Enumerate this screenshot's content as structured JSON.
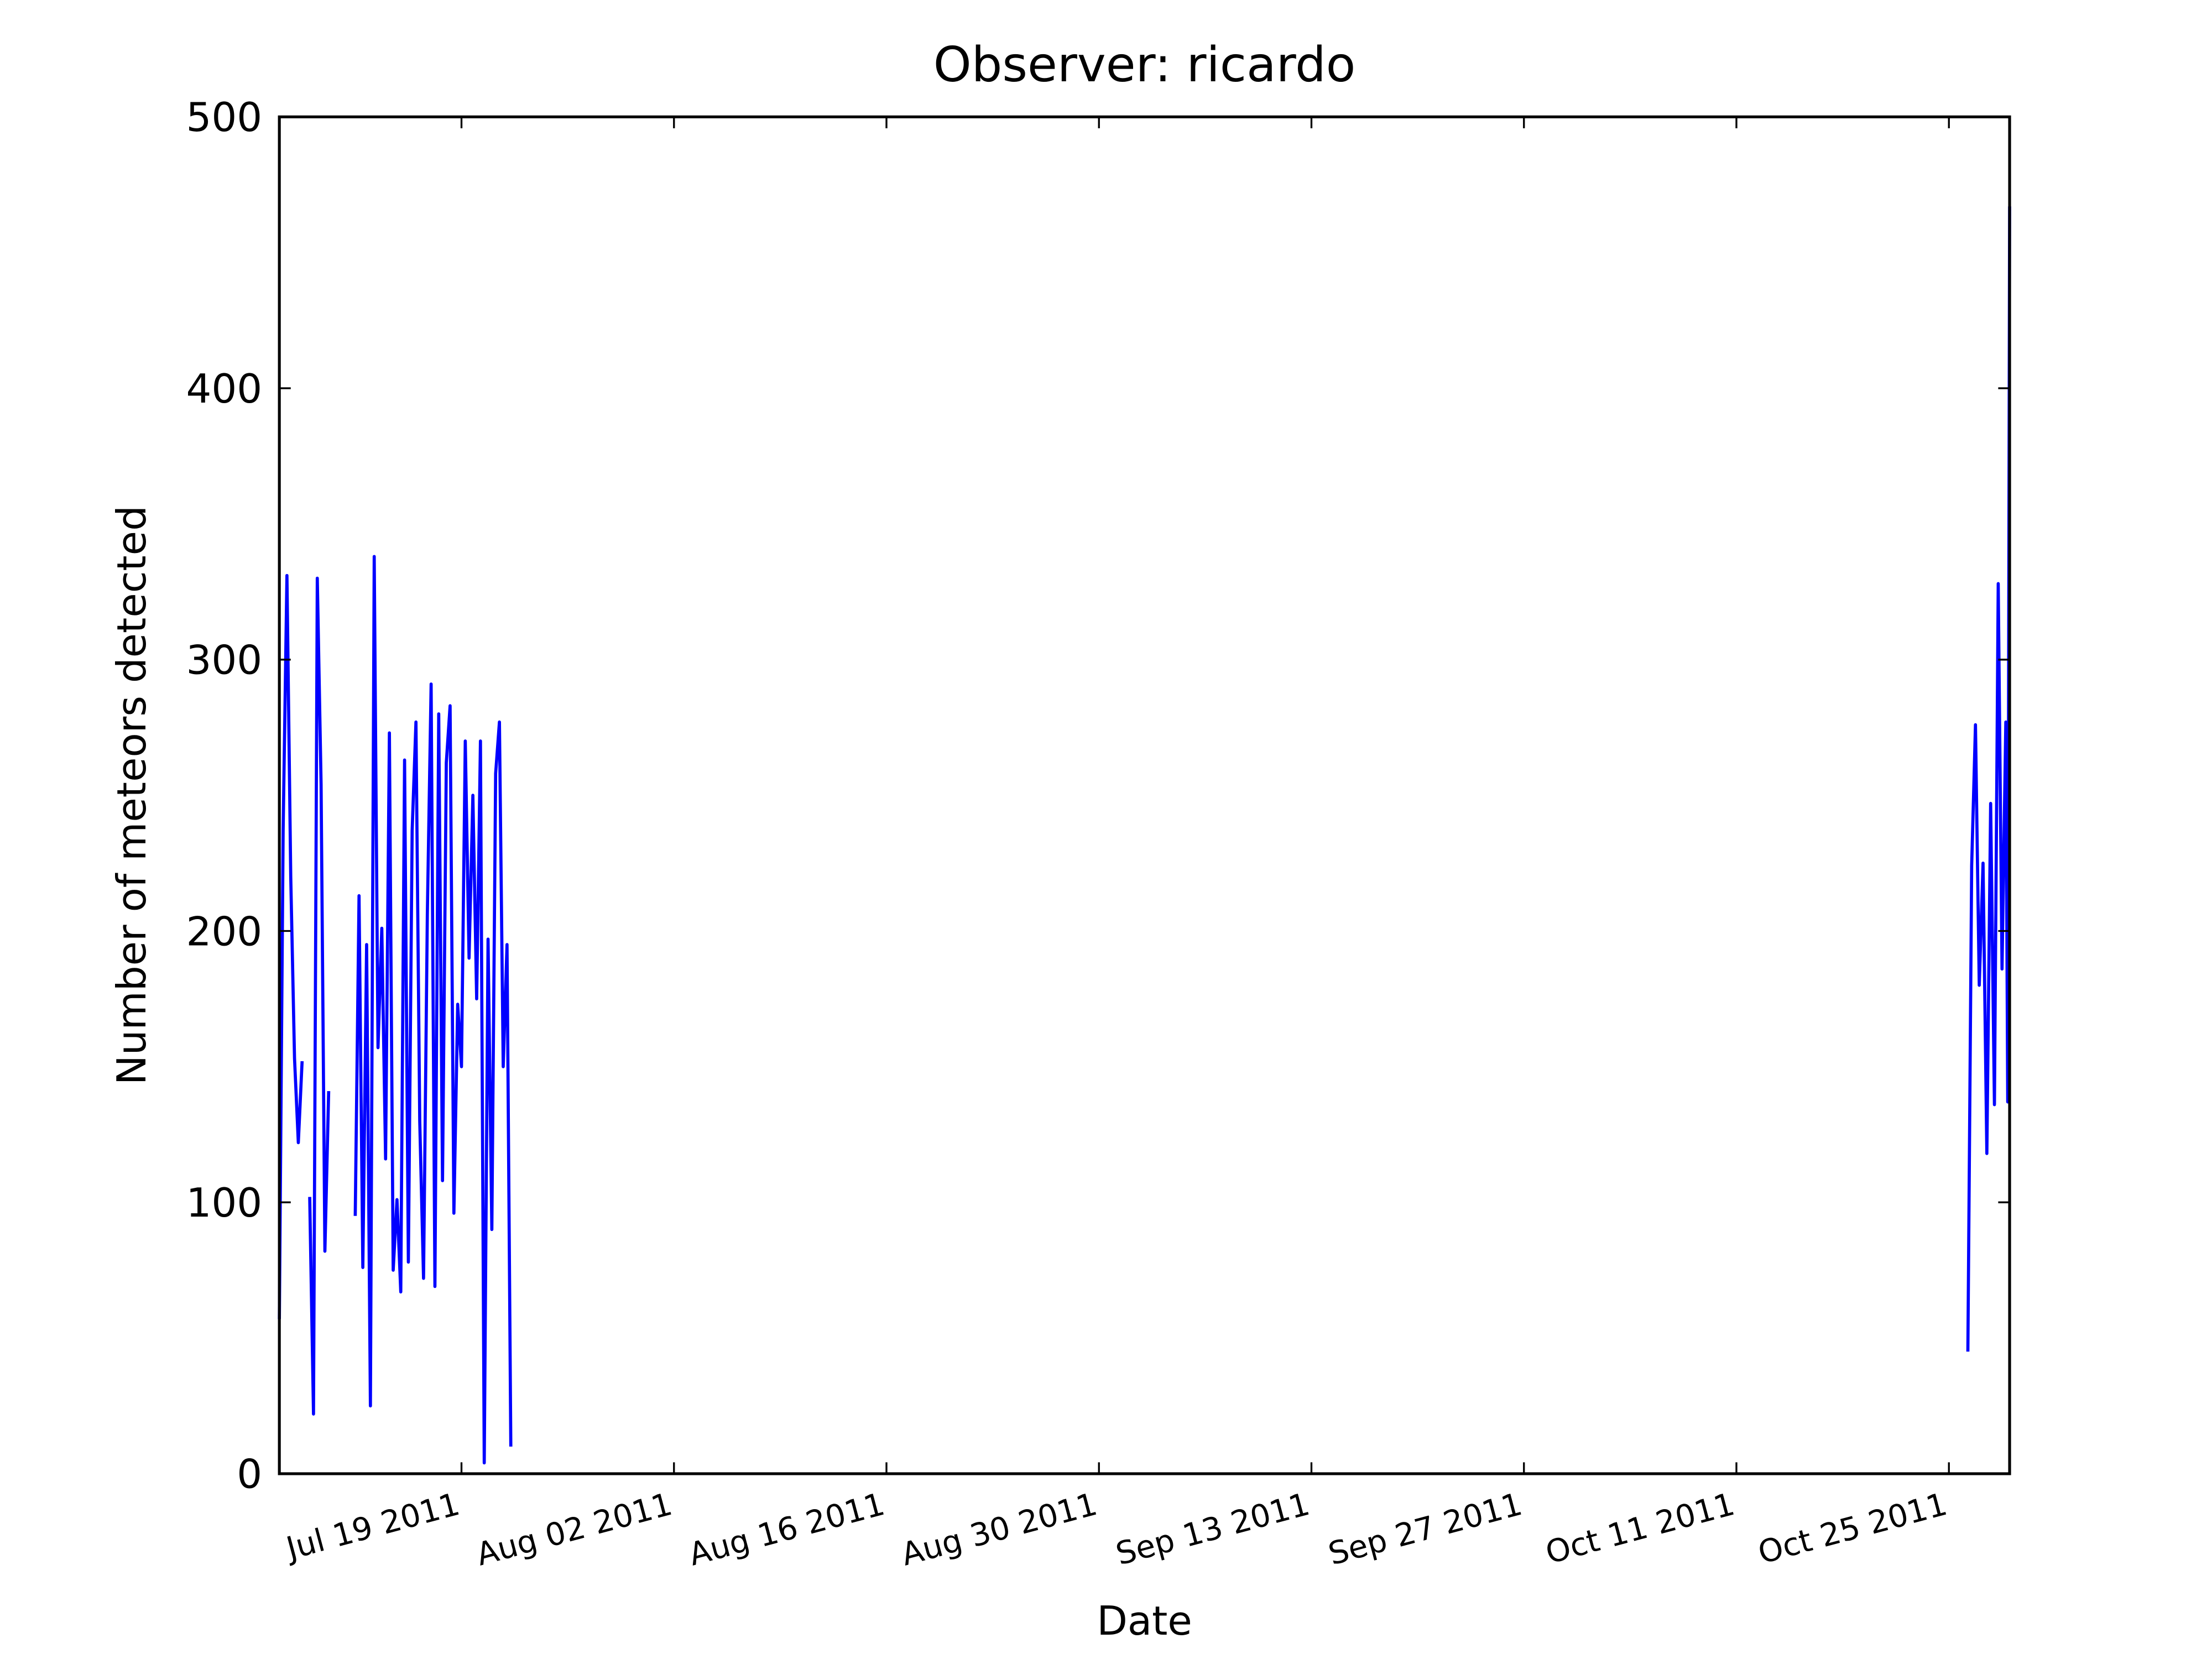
{
  "chart_data": {
    "type": "line",
    "title": "Observer: ricardo",
    "x_label": "Date",
    "y_label": "Number of meteors detected",
    "color": "#0000ff",
    "xlim": [
      "2011-07-07",
      "2011-10-29"
    ],
    "xticks": [
      {
        "value": "2011-07-19",
        "label": "Jul 19 2011"
      },
      {
        "value": "2011-08-02",
        "label": "Aug 02 2011"
      },
      {
        "value": "2011-08-16",
        "label": "Aug 16 2011"
      },
      {
        "value": "2011-08-30",
        "label": "Aug 30 2011"
      },
      {
        "value": "2011-09-13",
        "label": "Sep 13 2011"
      },
      {
        "value": "2011-09-27",
        "label": "Sep 27 2011"
      },
      {
        "value": "2011-10-11",
        "label": "Oct 11 2011"
      },
      {
        "value": "2011-10-25",
        "label": "Oct 25 2011"
      }
    ],
    "ylim": [
      0,
      500
    ],
    "yticks": [
      0,
      100,
      200,
      300,
      400,
      500
    ],
    "x": [
      "2011-07-07 00:00",
      "2011-07-07 06:00",
      "2011-07-07 12:00",
      "2011-07-07 18:00",
      "2011-07-08 00:00",
      "2011-07-08 06:00",
      "2011-07-08 12:00",
      "2011-07-08 18:00",
      "2011-07-09 00:00",
      "2011-07-09 06:00",
      "2011-07-09 12:00",
      "2011-07-09 18:00",
      "2011-07-10 00:00",
      "2011-07-10 06:00",
      "2011-07-10 12:00",
      "2011-07-12 00:00",
      "2011-07-12 06:00",
      "2011-07-12 12:00",
      "2011-07-12 18:00",
      "2011-07-13 00:00",
      "2011-07-13 06:00",
      "2011-07-13 12:00",
      "2011-07-13 18:00",
      "2011-07-14 00:00",
      "2011-07-14 06:00",
      "2011-07-14 12:00",
      "2011-07-14 18:00",
      "2011-07-15 00:00",
      "2011-07-15 06:00",
      "2011-07-15 12:00",
      "2011-07-15 18:00",
      "2011-07-16 00:00",
      "2011-07-16 06:00",
      "2011-07-16 12:00",
      "2011-07-16 18:00",
      "2011-07-17 00:00",
      "2011-07-17 06:00",
      "2011-07-17 12:00",
      "2011-07-17 18:00",
      "2011-07-18 00:00",
      "2011-07-18 06:00",
      "2011-07-18 12:00",
      "2011-07-18 18:00",
      "2011-07-19 00:00",
      "2011-07-19 06:00",
      "2011-07-19 12:00",
      "2011-07-19 18:00",
      "2011-07-20 00:00",
      "2011-07-20 06:00",
      "2011-07-20 12:00",
      "2011-07-20 18:00",
      "2011-07-21 00:00",
      "2011-07-21 06:00",
      "2011-07-21 12:00",
      "2011-07-21 18:00",
      "2011-07-22 00:00",
      "2011-07-22 06:00",
      "2011-07-22 12:00",
      "2011-10-26 06:00",
      "2011-10-26 12:00",
      "2011-10-26 18:00",
      "2011-10-27 00:00",
      "2011-10-27 06:00",
      "2011-10-27 12:00",
      "2011-10-27 18:00",
      "2011-10-28 00:00",
      "2011-10-28 06:00",
      "2011-10-28 12:00",
      "2011-10-28 18:00",
      "2011-10-28 21:00",
      "2011-10-29 00:00"
    ],
    "values": [
      57,
      237,
      331,
      220,
      153,
      122,
      152,
      null,
      102,
      22,
      330,
      254,
      82,
      141,
      null,
      95,
      213,
      76,
      195,
      25,
      338,
      157,
      201,
      116,
      273,
      75,
      101,
      67,
      263,
      78,
      237,
      277,
      130,
      72,
      206,
      291,
      69,
      280,
      108,
      262,
      283,
      96,
      173,
      150,
      270,
      190,
      250,
      175,
      270,
      4,
      197,
      90,
      258,
      277,
      150,
      195,
      10,
      null,
      45,
      224,
      276,
      180,
      225,
      118,
      247,
      136,
      328,
      186,
      277,
      137,
      467
    ]
  }
}
